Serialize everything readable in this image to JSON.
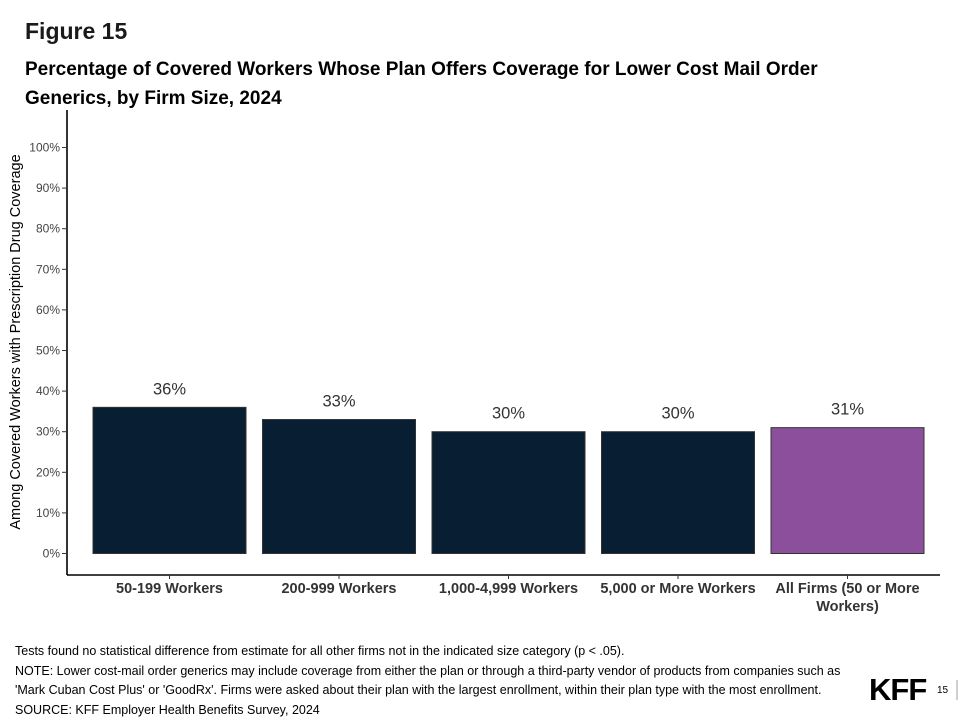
{
  "figure_label": "Figure 15",
  "title_lines": [
    "Percentage of Covered Workers Whose Plan Offers Coverage for Lower Cost Mail Order",
    "Generics, by Firm Size, 2024"
  ],
  "notes": [
    "Tests found no statistical difference from estimate for all other firms not in the indicated size category (p < .05).",
    "NOTE: Lower cost-mail order generics may include coverage from either the plan or through a third-party vendor of products from companies such as",
    "'Mark Cuban Cost Plus' or 'GoodRx'.  Firms were asked about their plan with the largest enrollment, within their plan type with the most enrollment.",
    "SOURCE: KFF Employer Health Benefits Survey, 2024"
  ],
  "logo": "KFF",
  "page_number": "15",
  "chart_data": {
    "type": "bar",
    "title": "Percentage of Covered Workers Whose Plan Offers Coverage for Lower Cost Mail Order Generics, by Firm Size, 2024",
    "xlabel": "",
    "ylabel": "Among Covered Workers with Prescription Drug Coverage",
    "ylim": [
      0,
      100
    ],
    "yticks": [
      "0%",
      "10%",
      "20%",
      "30%",
      "40%",
      "50%",
      "60%",
      "70%",
      "80%",
      "90%",
      "100%"
    ],
    "categories": [
      [
        "50-199 Workers"
      ],
      [
        "200-999 Workers"
      ],
      [
        "1,000-4,999 Workers"
      ],
      [
        "5,000 or More Workers"
      ],
      [
        "All Firms (50 or More",
        "Workers)"
      ]
    ],
    "values": [
      36,
      33,
      30,
      30,
      31
    ],
    "data_labels": [
      "36%",
      "33%",
      "30%",
      "30%",
      "31%"
    ],
    "colors": [
      "#071e33",
      "#071e33",
      "#071e33",
      "#071e33",
      "#8c4f9c"
    ],
    "grid": false,
    "legend": "none"
  }
}
